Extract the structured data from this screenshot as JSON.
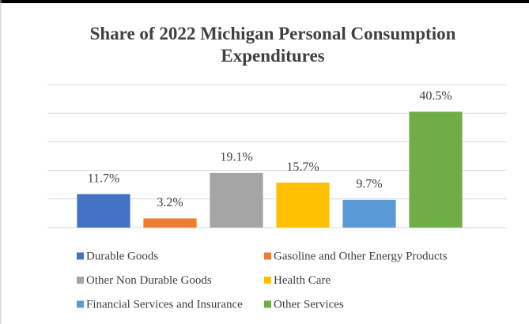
{
  "chart_data": {
    "type": "bar",
    "title": "Share of 2022 Michigan Personal Consumption Expenditures",
    "categories": [
      "Durable Goods",
      "Gasoline and Other Energy Products",
      "Other Non Durable Goods",
      "Health Care",
      "Financial Services and Insurance",
      "Other Services"
    ],
    "values": [
      11.7,
      3.2,
      19.1,
      15.7,
      9.7,
      40.5
    ],
    "value_labels": [
      "11.7%",
      "3.2%",
      "19.1%",
      "15.7%",
      "9.7%",
      "40.5%"
    ],
    "colors": [
      "#4472c4",
      "#ed7d31",
      "#a5a5a5",
      "#ffc000",
      "#5b9bd5",
      "#70ad47"
    ],
    "ylim": [
      0,
      50
    ],
    "yticks": [
      0,
      10,
      20,
      30,
      40,
      50
    ],
    "grid": true,
    "legend": "bottom"
  }
}
